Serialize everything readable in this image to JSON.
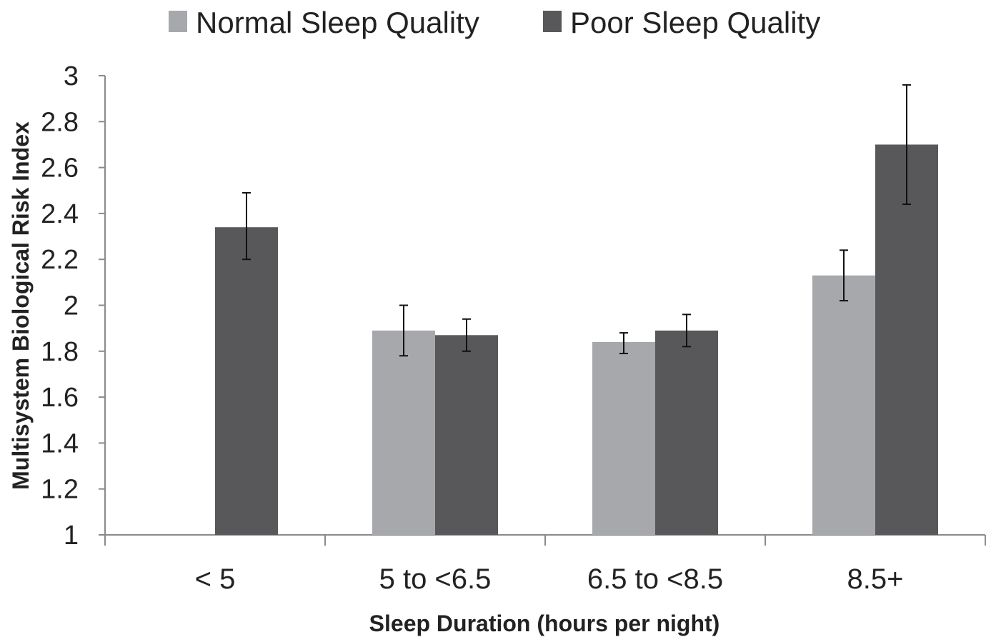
{
  "chart_data": {
    "type": "bar",
    "title": "",
    "xlabel": "Sleep Duration (hours per night)",
    "ylabel": "Multisystem Biological Risk Index",
    "ylim": [
      1,
      3
    ],
    "yticks": [
      1,
      1.2,
      1.4,
      1.6,
      1.8,
      2,
      2.2,
      2.4,
      2.6,
      2.8,
      3
    ],
    "ytick_labels": [
      "1",
      "1.2",
      "1.4",
      "1.6",
      "1.8",
      "2",
      "2.2",
      "2.4",
      "2.6",
      "2.8",
      "3"
    ],
    "categories": [
      "< 5",
      "5 to <6.5",
      "6.5 to <8.5",
      "8.5+"
    ],
    "series": [
      {
        "name": "Normal Sleep Quality",
        "color": "#a7a8ab",
        "values": [
          null,
          1.89,
          1.84,
          2.13
        ],
        "error_low": [
          null,
          1.78,
          1.79,
          2.02
        ],
        "error_high": [
          null,
          2.0,
          1.88,
          2.24
        ]
      },
      {
        "name": "Poor Sleep Quality",
        "color": "#58585a",
        "values": [
          2.34,
          1.87,
          1.89,
          2.7
        ],
        "error_low": [
          2.2,
          1.8,
          1.82,
          2.44
        ],
        "error_high": [
          2.49,
          1.94,
          1.96,
          2.96
        ]
      }
    ],
    "grid": false,
    "legend_position": "top-center"
  }
}
